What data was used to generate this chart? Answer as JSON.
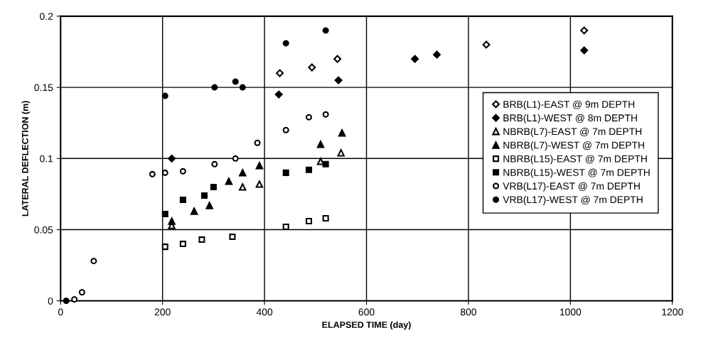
{
  "chart_data": {
    "type": "scatter",
    "xlabel": "ELAPSED TIME (day)",
    "ylabel": "LATERAL DEFLECTION (m)",
    "xlim": [
      0,
      1200
    ],
    "xticks": [
      0,
      200,
      400,
      600,
      800,
      1000,
      1200
    ],
    "ylim": [
      0,
      0.2
    ],
    "yticks": [
      0,
      0.05,
      0.1,
      0.15,
      0.2
    ],
    "grid": true,
    "legend": "center right",
    "series": [
      {
        "name": "BRB(L1)-EAST @ 9m DEPTH",
        "color": "#000000",
        "marker": "diamond",
        "x": [
          430,
          493,
          543,
          835,
          1027
        ],
        "values": [
          0.16,
          0.164,
          0.17,
          0.18,
          0.19
        ]
      },
      {
        "name": "BRB(L1)-WEST @ 8m DEPTH",
        "color": "#000000",
        "marker": "diamond",
        "x": [
          218,
          428,
          545,
          695,
          738,
          1027
        ],
        "values": [
          0.1,
          0.145,
          0.155,
          0.17,
          0.173,
          0.176
        ]
      },
      {
        "name": "NBRB(L7)-EAST @ 7m DEPTH",
        "color": "#000000",
        "marker": "triangle",
        "x": [
          218,
          357,
          390,
          510,
          550
        ],
        "values": [
          0.053,
          0.08,
          0.082,
          0.098,
          0.104
        ]
      },
      {
        "name": "NBRB(L7)-WEST @ 7m DEPTH",
        "color": "#000000",
        "marker": "triangle",
        "x": [
          218,
          262,
          292,
          330,
          357,
          390,
          510,
          552
        ],
        "values": [
          0.056,
          0.063,
          0.067,
          0.084,
          0.09,
          0.095,
          0.11,
          0.118
        ]
      },
      {
        "name": "NBRB(L15)-EAST @ 7m DEPTH",
        "color": "#000000",
        "marker": "square",
        "x": [
          205,
          240,
          277,
          337,
          442,
          487,
          520
        ],
        "values": [
          0.038,
          0.04,
          0.043,
          0.045,
          0.052,
          0.056,
          0.058
        ]
      },
      {
        "name": "NBRB(L15)-WEST @ 7m DEPTH",
        "color": "#000000",
        "marker": "square",
        "x": [
          205,
          240,
          282,
          300,
          442,
          487,
          520
        ],
        "values": [
          0.061,
          0.071,
          0.074,
          0.08,
          0.09,
          0.092,
          0.096
        ]
      },
      {
        "name": "VRB(L17)-EAST @ 7m DEPTH",
        "color": "#000000",
        "marker": "circle",
        "x": [
          27,
          42,
          65,
          180,
          205,
          240,
          302,
          343,
          386,
          442,
          487,
          520
        ],
        "values": [
          0.001,
          0.006,
          0.028,
          0.089,
          0.09,
          0.091,
          0.096,
          0.1,
          0.111,
          0.12,
          0.129,
          0.131
        ]
      },
      {
        "name": "VRB(L17)-WEST @ 7m DEPTH",
        "color": "#000000",
        "marker": "circle",
        "x": [
          11,
          205,
          302,
          343,
          357,
          442,
          520
        ],
        "values": [
          0,
          0.144,
          0.15,
          0.154,
          0.15,
          0.181,
          0.19
        ]
      }
    ]
  }
}
